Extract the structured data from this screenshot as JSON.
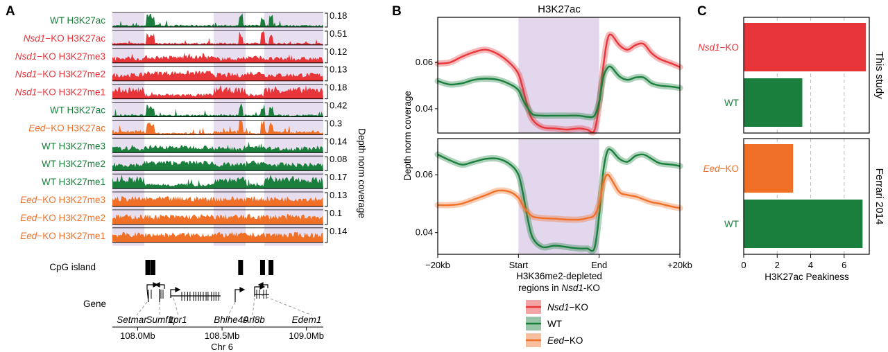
{
  "colors": {
    "wt": "#1a7f3c",
    "nsd1": "#e8353a",
    "eed": "#f07028",
    "shade": "#ddd0ea"
  },
  "panel_a": {
    "letter": "A",
    "tracks": [
      {
        "gene": "",
        "genotype": "WT",
        "mark": " H3K27ac",
        "scale": "0.18",
        "color": "wt",
        "profile": "ac"
      },
      {
        "gene": "Nsd1",
        "genotype": "−KO",
        "mark": " H3K27ac",
        "scale": "0.51",
        "color": "nsd1",
        "profile": "ac"
      },
      {
        "gene": "Nsd1",
        "genotype": "−KO",
        "mark": " H3K27me3",
        "scale": "0.12",
        "color": "nsd1",
        "profile": "me3"
      },
      {
        "gene": "Nsd1",
        "genotype": "−KO",
        "mark": " H3K27me2",
        "scale": "0.13",
        "color": "nsd1",
        "profile": "me2"
      },
      {
        "gene": "Nsd1",
        "genotype": "−KO",
        "mark": " H3K27me1",
        "scale": "0.18",
        "color": "nsd1",
        "profile": "me1"
      },
      {
        "gene": "",
        "genotype": "WT",
        "mark": " H3K27ac",
        "scale": "0.42",
        "color": "wt",
        "profile": "ac"
      },
      {
        "gene": "Eed",
        "genotype": "−KO",
        "mark": " H3K27ac",
        "scale": "0.3",
        "color": "eed",
        "profile": "ac2"
      },
      {
        "gene": "",
        "genotype": "WT",
        "mark": " H3K27me3",
        "scale": "0.14",
        "color": "wt",
        "profile": "me3"
      },
      {
        "gene": "",
        "genotype": "WT",
        "mark": " H3K27me2",
        "scale": "0.08",
        "color": "wt",
        "profile": "me2"
      },
      {
        "gene": "",
        "genotype": "WT",
        "mark": " H3K27me1",
        "scale": "0.17",
        "color": "wt",
        "profile": "me1"
      },
      {
        "gene": "Eed",
        "genotype": "−KO",
        "mark": " H3K27me3",
        "scale": "0.13",
        "color": "eed",
        "profile": "flat"
      },
      {
        "gene": "Eed",
        "genotype": "−KO",
        "mark": " H3K27me2",
        "scale": "0.1",
        "color": "eed",
        "profile": "flat"
      },
      {
        "gene": "Eed",
        "genotype": "−KO",
        "mark": " H3K27me1",
        "scale": "0.14",
        "color": "eed",
        "profile": "flat"
      }
    ],
    "shaded_regions_mb": [
      [
        107.85,
        108.04
      ],
      [
        108.45,
        108.64
      ],
      [
        108.75,
        109.1
      ]
    ],
    "ylabel": "Depth norm coverage",
    "cpg_label": "CpG island",
    "cpg_islands_mb": [
      108.06,
      108.09,
      108.61,
      108.74,
      108.79
    ],
    "gene_track_label": "Gene",
    "gene_names": [
      "Setmar",
      "Sumf1",
      "Itpr1",
      "Bhlhe40",
      "Arl8b",
      "Edem1"
    ],
    "axis_ticks": [
      "108.0Mb",
      "108.5Mb",
      "109.0Mb"
    ],
    "axis_tick_mb": [
      108.0,
      108.5,
      109.0
    ],
    "xlim_mb": [
      107.85,
      109.1
    ],
    "chromosome": "Chr 6"
  },
  "panel_b": {
    "letter": "B",
    "title": "H3K27ac",
    "ylabel": "Depth norm coverage",
    "xticks": [
      "−20kb",
      "Start",
      "End",
      "+20kb"
    ],
    "xlabel_line1": "H3K36me2-depleted",
    "xlabel_line2_prefix": "regions in ",
    "xlabel_line2_gene": "Nsd1",
    "xlabel_line2_suffix": "-KO",
    "chart_data": [
      {
        "type": "line",
        "ylabel": "Depth norm coverage",
        "yticks": [
          "0.06",
          "0.04"
        ],
        "ytick_values": [
          0.06,
          0.04
        ],
        "ylim": [
          0.0295,
          0.0795
        ],
        "shaded_x": [
          0,
          1
        ],
        "x": [
          -1,
          -0.85,
          -0.7,
          -0.55,
          -0.4,
          -0.25,
          -0.1,
          0,
          0.06,
          0.12,
          0.18,
          0.3,
          0.45,
          0.6,
          0.75,
          0.85,
          0.94,
          1.0,
          1.05,
          1.1,
          1.15,
          1.25,
          1.35,
          1.45,
          1.55,
          1.65,
          1.75,
          1.9,
          2.0
        ],
        "series": [
          {
            "key": "nsd1",
            "values": [
              0.0595,
              0.06,
              0.0625,
              0.0645,
              0.0655,
              0.0635,
              0.0595,
              0.055,
              0.048,
              0.04,
              0.035,
              0.032,
              0.0315,
              0.031,
              0.0315,
              0.031,
              0.0305,
              0.042,
              0.058,
              0.0695,
              0.072,
              0.0675,
              0.0655,
              0.0675,
              0.068,
              0.064,
              0.0615,
              0.0595,
              0.058
            ]
          },
          {
            "key": "wt",
            "values": [
              0.052,
              0.0505,
              0.051,
              0.0525,
              0.053,
              0.0525,
              0.0505,
              0.048,
              0.0435,
              0.04,
              0.0375,
              0.037,
              0.037,
              0.037,
              0.037,
              0.0365,
              0.037,
              0.043,
              0.0535,
              0.0575,
              0.058,
              0.054,
              0.0525,
              0.0535,
              0.0535,
              0.051,
              0.05,
              0.0495,
              0.049
            ]
          }
        ]
      },
      {
        "type": "line",
        "xticks": [
          "−20kb",
          "Start",
          "End",
          "+20kb"
        ],
        "yticks": [
          "0.06",
          "0.04"
        ],
        "ytick_values": [
          0.06,
          0.04
        ],
        "ylim": [
          0.0325,
          0.0725
        ],
        "shaded_x": [
          0,
          1
        ],
        "x": [
          -1,
          -0.85,
          -0.7,
          -0.55,
          -0.4,
          -0.25,
          -0.1,
          0,
          0.06,
          0.12,
          0.18,
          0.3,
          0.45,
          0.6,
          0.75,
          0.85,
          0.94,
          1.0,
          1.05,
          1.1,
          1.15,
          1.25,
          1.35,
          1.45,
          1.55,
          1.65,
          1.75,
          1.9,
          2.0
        ],
        "series": [
          {
            "key": "wt",
            "values": [
              0.067,
              0.065,
              0.0635,
              0.0645,
              0.0655,
              0.0655,
              0.0635,
              0.06,
              0.053,
              0.044,
              0.038,
              0.035,
              0.0355,
              0.035,
              0.0345,
              0.0345,
              0.0345,
              0.046,
              0.061,
              0.068,
              0.0685,
              0.0655,
              0.0645,
              0.0665,
              0.067,
              0.0655,
              0.064,
              0.0635,
              0.063
            ]
          },
          {
            "key": "eed",
            "values": [
              0.0495,
              0.0495,
              0.05,
              0.0515,
              0.053,
              0.0545,
              0.054,
              0.052,
              0.049,
              0.047,
              0.0455,
              0.045,
              0.0448,
              0.0445,
              0.0445,
              0.045,
              0.046,
              0.05,
              0.057,
              0.06,
              0.0585,
              0.054,
              0.053,
              0.0525,
              0.0515,
              0.0505,
              0.05,
              0.049,
              0.0485
            ]
          }
        ]
      }
    ],
    "legend": [
      {
        "key": "nsd1",
        "gene": "Nsd1",
        "suffix": "−KO"
      },
      {
        "key": "wt",
        "gene": "",
        "suffix": "WT"
      },
      {
        "key": "eed",
        "gene": "Eed",
        "suffix": "−KO"
      }
    ]
  },
  "panel_c": {
    "letter": "C",
    "xlabel": "H3K27ac Peakiness",
    "xticks": [
      "0",
      "2",
      "4",
      "6"
    ],
    "xtick_values": [
      0,
      2,
      4,
      6
    ],
    "chart_data": [
      {
        "type": "bar",
        "facet": "This study",
        "xlim": [
          0,
          7.5
        ],
        "bars": [
          {
            "key": "nsd1",
            "gene": "Nsd1",
            "suffix": "−KO",
            "value": 7.3
          },
          {
            "key": "wt",
            "gene": "",
            "suffix": "WT",
            "value": 3.5
          }
        ]
      },
      {
        "type": "bar",
        "facet": "Ferrari 2014",
        "xlim": [
          0,
          7.5
        ],
        "bars": [
          {
            "key": "eed",
            "gene": "Eed",
            "suffix": "−KO",
            "value": 2.95
          },
          {
            "key": "wt",
            "gene": "",
            "suffix": "WT",
            "value": 7.1
          }
        ]
      }
    ]
  }
}
